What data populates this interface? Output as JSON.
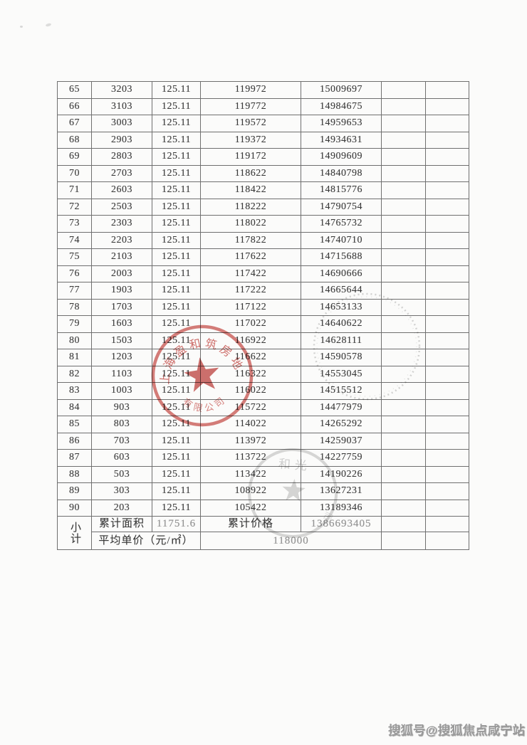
{
  "page": {
    "background": "#fbfbfa"
  },
  "table": {
    "columns": [
      "row-no",
      "unit-no",
      "area",
      "unit-price",
      "total-price",
      "blank-1",
      "blank-2"
    ],
    "rows": [
      [
        "65",
        "3203",
        "125.11",
        "119972",
        "15009697"
      ],
      [
        "66",
        "3103",
        "125.11",
        "119772",
        "14984675"
      ],
      [
        "67",
        "3003",
        "125.11",
        "119572",
        "14959653"
      ],
      [
        "68",
        "2903",
        "125.11",
        "119372",
        "14934631"
      ],
      [
        "69",
        "2803",
        "125.11",
        "119172",
        "14909609"
      ],
      [
        "70",
        "2703",
        "125.11",
        "118622",
        "14840798"
      ],
      [
        "71",
        "2603",
        "125.11",
        "118422",
        "14815776"
      ],
      [
        "72",
        "2503",
        "125.11",
        "118222",
        "14790754"
      ],
      [
        "73",
        "2303",
        "125.11",
        "118022",
        "14765732"
      ],
      [
        "74",
        "2203",
        "125.11",
        "117822",
        "14740710"
      ],
      [
        "75",
        "2103",
        "125.11",
        "117622",
        "14715688"
      ],
      [
        "76",
        "2003",
        "125.11",
        "117422",
        "14690666"
      ],
      [
        "77",
        "1903",
        "125.11",
        "117222",
        "14665644"
      ],
      [
        "78",
        "1703",
        "125.11",
        "117122",
        "14653133"
      ],
      [
        "79",
        "1603",
        "125.11",
        "117022",
        "14640622"
      ],
      [
        "80",
        "1503",
        "125.11",
        "116922",
        "14628111"
      ],
      [
        "81",
        "1203",
        "125.11",
        "116622",
        "14590578"
      ],
      [
        "82",
        "1103",
        "125.11",
        "116322",
        "14553045"
      ],
      [
        "83",
        "1003",
        "125.11",
        "116022",
        "14515512"
      ],
      [
        "84",
        "903",
        "125.11",
        "115722",
        "14477979"
      ],
      [
        "85",
        "803",
        "125.11",
        "114022",
        "14265292"
      ],
      [
        "86",
        "703",
        "125.11",
        "113972",
        "14259037"
      ],
      [
        "87",
        "603",
        "125.11",
        "113722",
        "14227759"
      ],
      [
        "88",
        "503",
        "125.11",
        "113422",
        "14190226"
      ],
      [
        "89",
        "303",
        "125.11",
        "108922",
        "13627231"
      ],
      [
        "90",
        "203",
        "125.11",
        "105422",
        "13189346"
      ]
    ],
    "summary": {
      "label_vertical": "小计",
      "cumulative_area_label": "累计面积",
      "cumulative_area_value": "11751.6",
      "cumulative_price_label": "累计价格",
      "cumulative_price_value": "1386693405",
      "average_price_label": "平均单价（元/㎡）",
      "average_price_value": "118000"
    }
  },
  "stamps": {
    "red_seal": {
      "top_text": "上海盈和筑房地产",
      "bottom_text": "有限公司",
      "color": "#c9534f"
    },
    "gray_seal_bottom": {
      "top_text": "和光",
      "color": "#9a9a9a"
    },
    "gray_seal_right": {
      "color": "#b5b5b5"
    }
  },
  "watermark": {
    "text": "搜狐号@搜狐焦点咸宁站"
  }
}
